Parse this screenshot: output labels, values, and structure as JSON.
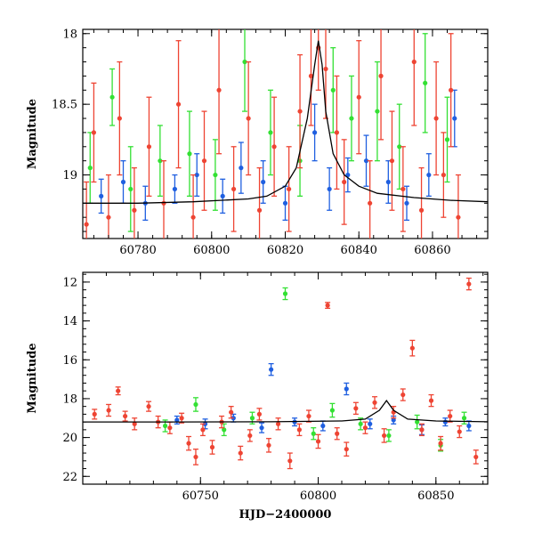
{
  "colors": {
    "green": "#33e033",
    "blue": "#1f5fe0",
    "red": "#ee4433",
    "black": "#000000"
  },
  "chart_data": [
    {
      "type": "scatter",
      "panel": "top",
      "title": "",
      "xlabel": "",
      "ylabel": "Magnitude",
      "xlim": [
        60765,
        60875
      ],
      "ylim": [
        19.45,
        17.97
      ],
      "y_inverted": true,
      "x_ticks": [
        60780,
        60800,
        60820,
        60840,
        60860
      ],
      "y_ticks": [
        18,
        18.5,
        19
      ],
      "x_tick_labels": [
        "60780",
        "60800",
        "60820",
        "60840",
        "60860"
      ],
      "y_tick_labels": [
        "18",
        "18.5",
        "19"
      ],
      "grid": false,
      "legend": "none",
      "series": [
        {
          "color": "green",
          "x": [
            60767,
            60773,
            60778,
            60786,
            60794,
            60801,
            60809,
            60816,
            60824,
            60833,
            60838,
            60845,
            60851,
            60858,
            60864
          ],
          "y": [
            18.95,
            18.45,
            19.1,
            18.9,
            18.85,
            19.0,
            18.2,
            18.7,
            18.9,
            18.4,
            18.6,
            18.55,
            18.8,
            18.35,
            18.75
          ],
          "err": [
            0.25,
            0.2,
            0.3,
            0.25,
            0.3,
            0.25,
            0.35,
            0.3,
            0.25,
            0.3,
            0.3,
            0.35,
            0.3,
            0.35,
            0.3
          ]
        },
        {
          "color": "blue",
          "x": [
            60770,
            60776,
            60782,
            60790,
            60796,
            60803,
            60808,
            60814,
            60820,
            60828,
            60832,
            60837,
            60842,
            60848,
            60853,
            60859,
            60866
          ],
          "y": [
            19.15,
            19.05,
            19.2,
            19.1,
            19.0,
            19.15,
            18.95,
            19.05,
            19.2,
            18.7,
            19.1,
            19.0,
            18.9,
            19.05,
            19.2,
            19.0,
            18.6
          ],
          "err": [
            0.12,
            0.15,
            0.12,
            0.1,
            0.15,
            0.12,
            0.18,
            0.15,
            0.12,
            0.2,
            0.15,
            0.12,
            0.18,
            0.15,
            0.12,
            0.15,
            0.2
          ]
        },
        {
          "color": "red",
          "x": [
            60766,
            60768,
            60772,
            60775,
            60779,
            60783,
            60787,
            60791,
            60795,
            60798,
            60802,
            60806,
            60810,
            60813,
            60817,
            60821,
            60824,
            60827,
            60829,
            60831,
            60834,
            60836,
            60840,
            60843,
            60846,
            60849,
            60852,
            60855,
            60857,
            60861,
            60863,
            60865,
            60867
          ],
          "y": [
            19.35,
            18.7,
            19.3,
            18.6,
            19.25,
            18.8,
            19.2,
            18.5,
            19.3,
            18.9,
            18.4,
            19.1,
            18.6,
            19.25,
            18.8,
            19.1,
            18.55,
            18.3,
            18.1,
            18.25,
            18.7,
            19.05,
            18.45,
            19.2,
            18.3,
            18.9,
            19.1,
            18.2,
            19.25,
            18.6,
            19.0,
            18.4,
            19.3
          ],
          "err": [
            0.3,
            0.35,
            0.3,
            0.4,
            0.3,
            0.35,
            0.3,
            0.45,
            0.3,
            0.35,
            0.45,
            0.3,
            0.4,
            0.3,
            0.35,
            0.3,
            0.4,
            0.35,
            0.3,
            0.35,
            0.4,
            0.3,
            0.4,
            0.3,
            0.45,
            0.35,
            0.3,
            0.45,
            0.3,
            0.4,
            0.3,
            0.4,
            0.3
          ]
        }
      ],
      "model_curve": {
        "color": "black",
        "x": [
          60765,
          60780,
          60795,
          60810,
          60815,
          60820,
          60823,
          60826,
          60828,
          60829,
          60830,
          60831,
          60833,
          60836,
          60840,
          60845,
          60855,
          60865,
          60875
        ],
        "y": [
          19.2,
          19.2,
          19.19,
          19.17,
          19.15,
          19.08,
          18.95,
          18.6,
          18.22,
          18.05,
          18.22,
          18.55,
          18.85,
          19.0,
          19.08,
          19.13,
          19.16,
          19.18,
          19.19
        ]
      }
    },
    {
      "type": "scatter",
      "panel": "bottom",
      "title": "",
      "xlabel": "HJD−2400000",
      "ylabel": "Magnitude",
      "xlim": [
        60700,
        60872
      ],
      "ylim": [
        22.4,
        11.5
      ],
      "y_inverted": true,
      "x_ticks": [
        60750,
        60800,
        60850
      ],
      "y_ticks": [
        12,
        14,
        16,
        18,
        20,
        22
      ],
      "x_tick_labels": [
        "60750",
        "60800",
        "60850"
      ],
      "y_tick_labels": [
        "12",
        "14",
        "16",
        "18",
        "20",
        "22"
      ],
      "grid": false,
      "legend": "none",
      "series": [
        {
          "color": "green",
          "x": [
            60735,
            60748,
            60760,
            60772,
            60786,
            60798,
            60806,
            60818,
            60830,
            60842,
            60852,
            60862
          ],
          "y": [
            19.4,
            18.3,
            19.6,
            19.0,
            12.6,
            19.8,
            18.6,
            19.3,
            19.9,
            19.2,
            20.4,
            19.0
          ],
          "err": [
            0.3,
            0.35,
            0.3,
            0.3,
            0.3,
            0.3,
            0.35,
            0.3,
            0.3,
            0.35,
            0.3,
            0.3
          ]
        },
        {
          "color": "blue",
          "x": [
            60740,
            60752,
            60764,
            60776,
            60780,
            60790,
            60802,
            60812,
            60822,
            60832,
            60844,
            60854,
            60864
          ],
          "y": [
            19.1,
            19.3,
            19.0,
            19.5,
            16.5,
            19.2,
            19.4,
            17.5,
            19.3,
            19.1,
            19.6,
            19.2,
            19.4
          ],
          "err": [
            0.2,
            0.25,
            0.2,
            0.25,
            0.3,
            0.2,
            0.25,
            0.3,
            0.25,
            0.2,
            0.25,
            0.2,
            0.25
          ]
        },
        {
          "color": "red",
          "x": [
            60705,
            60711,
            60715,
            60718,
            60722,
            60728,
            60732,
            60737,
            60742,
            60745,
            60748,
            60751,
            60755,
            60759,
            60763,
            60767,
            60771,
            60775,
            60779,
            60783,
            60788,
            60792,
            60796,
            60800,
            60804,
            60808,
            60812,
            60816,
            60820,
            60824,
            60828,
            60832,
            60836,
            60840,
            60844,
            60848,
            60852,
            60856,
            60860,
            60864,
            60867
          ],
          "y": [
            18.8,
            18.6,
            17.6,
            18.9,
            19.3,
            18.4,
            19.2,
            19.5,
            19.0,
            20.3,
            21.0,
            19.6,
            20.5,
            19.2,
            18.7,
            20.8,
            19.9,
            18.8,
            20.4,
            19.3,
            21.2,
            19.6,
            18.9,
            20.2,
            13.2,
            19.8,
            20.6,
            18.5,
            19.5,
            18.2,
            19.9,
            18.7,
            17.8,
            15.4,
            19.6,
            18.1,
            20.3,
            18.9,
            19.7,
            12.1,
            21.0
          ],
          "err": [
            0.25,
            0.3,
            0.2,
            0.25,
            0.3,
            0.25,
            0.3,
            0.3,
            0.25,
            0.35,
            0.4,
            0.3,
            0.35,
            0.3,
            0.3,
            0.35,
            0.3,
            0.3,
            0.35,
            0.3,
            0.4,
            0.3,
            0.3,
            0.35,
            0.15,
            0.3,
            0.35,
            0.3,
            0.3,
            0.3,
            0.35,
            0.3,
            0.3,
            0.4,
            0.3,
            0.3,
            0.35,
            0.3,
            0.3,
            0.3,
            0.35
          ]
        }
      ],
      "model_curve": {
        "color": "black",
        "x": [
          60700,
          60740,
          60780,
          60810,
          60820,
          60826,
          60829,
          60832,
          60838,
          60850,
          60872
        ],
        "y": [
          19.2,
          19.2,
          19.19,
          19.15,
          19.05,
          18.6,
          18.1,
          18.6,
          19.05,
          19.15,
          19.19
        ]
      }
    }
  ]
}
